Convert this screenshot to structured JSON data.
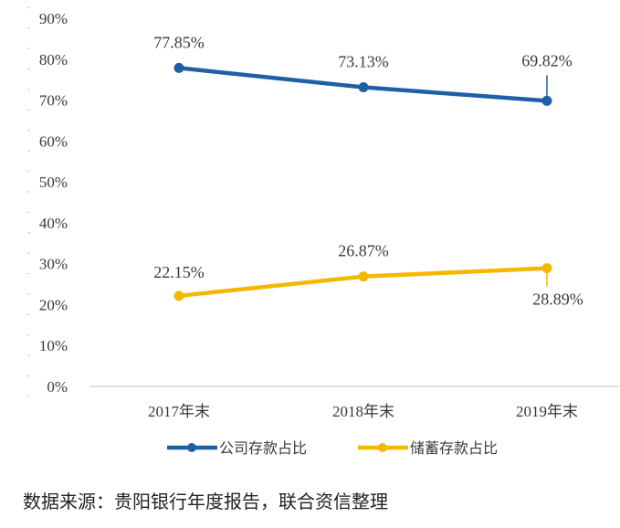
{
  "chart_data": {
    "type": "line",
    "categories": [
      "2017年末",
      "2018年末",
      "2019年末"
    ],
    "series": [
      {
        "name": "公司存款占比",
        "values": [
          77.85,
          73.13,
          69.82
        ],
        "labels": [
          "77.85%",
          "73.13%",
          "69.82%"
        ],
        "color": "#1f5fa6"
      },
      {
        "name": "储蓄存款占比",
        "values": [
          22.15,
          26.87,
          28.89
        ],
        "labels": [
          "22.15%",
          "26.87%",
          "28.89%"
        ],
        "color": "#f5b800"
      }
    ],
    "ylim": [
      0,
      90
    ],
    "yticks": [
      "0%",
      "10%",
      "20%",
      "30%",
      "40%",
      "50%",
      "60%",
      "70%",
      "80%",
      "90%"
    ],
    "legend_position": "bottom"
  },
  "source_note": "数据来源：贵阳银行年度报告，联合资信整理"
}
